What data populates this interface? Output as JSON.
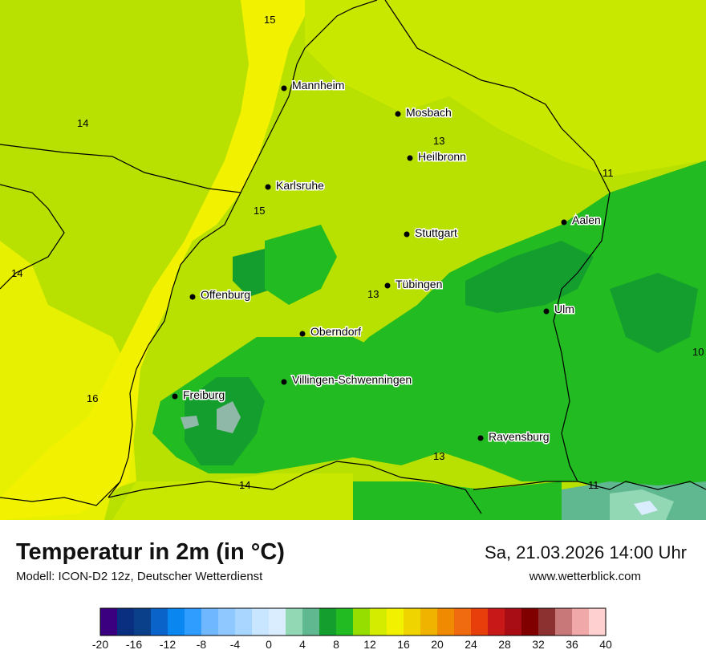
{
  "map": {
    "cities": [
      {
        "name": "Mannheim"
      },
      {
        "name": "Mosbach"
      },
      {
        "name": "Heilbronn"
      },
      {
        "name": "Karlsruhe"
      },
      {
        "name": "Stuttgart"
      },
      {
        "name": "Aalen"
      },
      {
        "name": "Tübingen"
      },
      {
        "name": "Offenburg"
      },
      {
        "name": "Ulm"
      },
      {
        "name": "Oberndorf"
      },
      {
        "name": "Villingen-Schwenningen"
      },
      {
        "name": "Freiburg"
      },
      {
        "name": "Ravensburg"
      }
    ],
    "value_labels": [
      "15",
      "14",
      "13",
      "11",
      "15",
      "14",
      "13",
      "10",
      "16",
      "13",
      "14",
      "11"
    ],
    "colors": {
      "land_base": "#b8e000",
      "warm_strip": "#f2f200",
      "yellow_green": "#d4ec00",
      "green": "#22bb22",
      "dark_green": "#149e2e",
      "cool_spots": "#8fb8a8",
      "border": "#000000"
    }
  },
  "footer": {
    "title": "Temperatur in 2m (in °C)",
    "subtitle": "Modell: ICON-D2 12z, Deutscher Wetterdienst",
    "datetime": "Sa, 21.03.2026 14:00 Uhr",
    "website": "www.wetterblick.com"
  },
  "legend": {
    "ticks": [
      "-20",
      "-16",
      "-12",
      "-8",
      "-4",
      "0",
      "4",
      "8",
      "12",
      "16",
      "20",
      "24",
      "28",
      "32",
      "36",
      "40"
    ],
    "colors": [
      "#3b0080",
      "#0b2f80",
      "#0a3f8a",
      "#0a63c8",
      "#0a86f0",
      "#2f9cff",
      "#6fb8ff",
      "#8fc8ff",
      "#a8d6ff",
      "#c8e6ff",
      "#d9edff",
      "#93d8b4",
      "#5fb890",
      "#149e2e",
      "#22bb22",
      "#96dd00",
      "#d4ec00",
      "#f2f200",
      "#f0d400",
      "#f0b400",
      "#f08a00",
      "#f06a10",
      "#e83e0c",
      "#c81818",
      "#a80c14",
      "#800000",
      "#8c3030",
      "#c87878",
      "#f0a8a8",
      "#ffd0d0"
    ]
  }
}
